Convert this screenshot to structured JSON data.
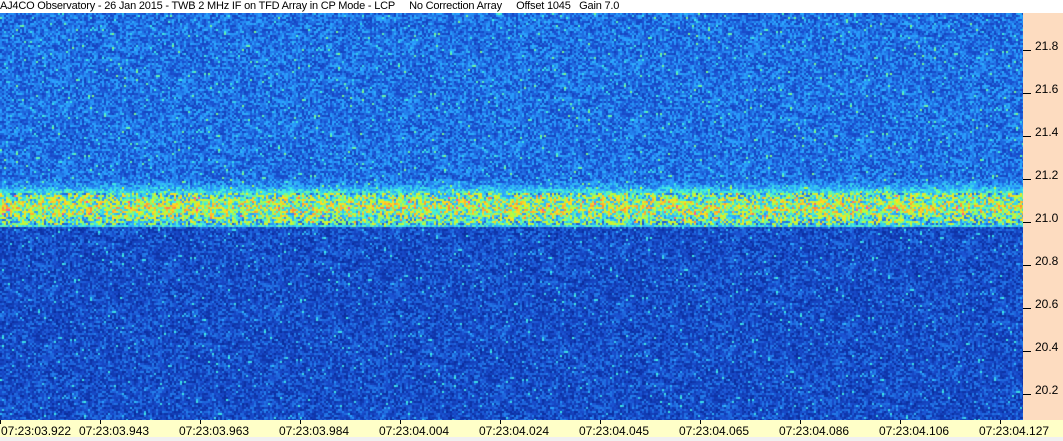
{
  "title": "AJ4CO Observatory - 26 Jan 2015 - TWB 2 MHz IF on TFD Array in CP Mode - LCP     No Correction Array     Offset 1045   Gain 7.0",
  "chart_data": {
    "type": "heatmap",
    "title": "AJ4CO Observatory - 26 Jan 2015 - TWB 2 MHz IF on TFD Array in CP Mode - LCP",
    "y_ticks": [
      "21.8",
      "21.6",
      "21.4",
      "21.2",
      "21.0",
      "20.8",
      "20.6",
      "20.4",
      "20.2"
    ],
    "y_tick_values": [
      21.8,
      21.6,
      21.4,
      21.2,
      21.0,
      20.8,
      20.6,
      20.4,
      20.2
    ],
    "ylim": [
      20.08,
      21.97
    ],
    "x_ticks": [
      "07:23:03.922",
      "07:23:03.943",
      "07:23:03.963",
      "07:23:03.984",
      "07:23:04.004",
      "07:23:04.024",
      "07:23:04.045",
      "07:23:04.065",
      "07:23:04.086",
      "07:23:04.106",
      "07:23:04.127"
    ],
    "band_center": 21.07,
    "band_lower_edge": 21.0,
    "band_upper_glow": 21.2,
    "colormap": [
      "#0a2a9a",
      "#1a50d0",
      "#2aa0ff",
      "#40f0e0",
      "#b0ff40",
      "#ffe020",
      "#ff8040",
      "#ff40c0"
    ],
    "grid": false
  }
}
